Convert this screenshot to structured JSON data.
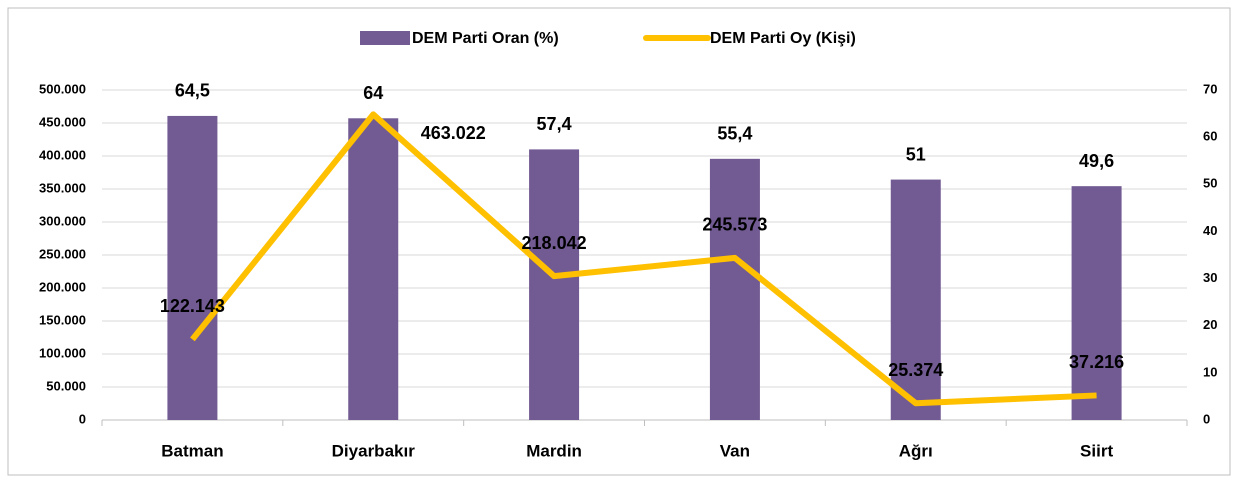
{
  "chart_data": {
    "type": "bar",
    "categories": [
      "Batman",
      "Diyarbakır",
      "Mardin",
      "Van",
      "Ağrı",
      "Siirt"
    ],
    "series": [
      {
        "name": "DEM Parti Oran (%)",
        "type": "bar",
        "axis": "y2",
        "color": "#725a92",
        "values": [
          64.5,
          64,
          57.4,
          55.4,
          51,
          49.6
        ],
        "value_labels": [
          "64,5",
          "64",
          "57,4",
          "55,4",
          "51",
          "49,6"
        ]
      },
      {
        "name": "DEM Parti Oy (Kişi)",
        "type": "line",
        "axis": "y",
        "color": "#ffc000",
        "values": [
          122143,
          463022,
          218042,
          245573,
          25374,
          37216
        ],
        "value_labels": [
          "122.143",
          "463.022",
          "218.042",
          "245.573",
          "25.374",
          "37.216"
        ]
      }
    ],
    "ylim": [
      0,
      500000
    ],
    "yticks": [
      0,
      {
        "value": 50000,
        "label": "50.000"
      },
      {
        "value": 100000,
        "label": "100.000"
      },
      {
        "value": 150000,
        "label": "150.000"
      },
      {
        "value": 200000,
        "label": "200.000"
      },
      {
        "value": 250000,
        "label": "250.000"
      },
      {
        "value": 300000,
        "label": "300.000"
      },
      {
        "value": 350000,
        "label": "350.000"
      },
      {
        "value": 400000,
        "label": "400.000"
      },
      {
        "value": 450000,
        "label": "450.000"
      },
      {
        "value": 500000,
        "label": "500.000"
      }
    ],
    "y2lim": [
      0,
      70
    ],
    "y2ticks": [
      0,
      10,
      20,
      30,
      40,
      50,
      60,
      70
    ],
    "grid": true,
    "legend": "top"
  }
}
